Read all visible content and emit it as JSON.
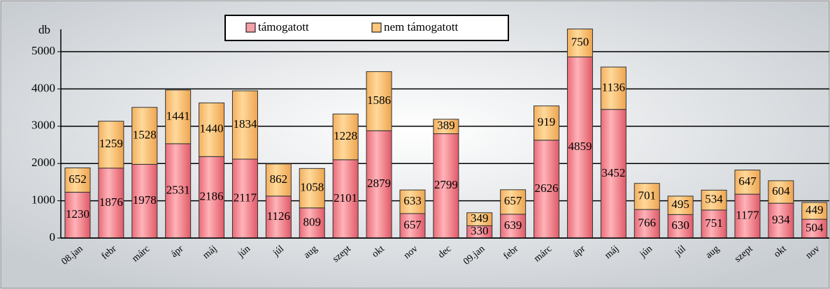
{
  "chart_data": {
    "type": "stacked_bar",
    "y_label": "db",
    "categories": [
      "08.jan",
      "febr",
      "márc",
      "ápr",
      "máj",
      "jún",
      "júl",
      "aug",
      "szept",
      "okt",
      "nov",
      "dec",
      "09.jan",
      "febr",
      "márc",
      "ápr",
      "máj",
      "jún",
      "júl",
      "aug",
      "szept",
      "okt",
      "nov"
    ],
    "series": [
      {
        "name": "támogatott",
        "color": "#f4a0a8",
        "values": [
          1230,
          1876,
          1978,
          2531,
          2186,
          2117,
          1126,
          809,
          2101,
          2879,
          657,
          2799,
          330,
          639,
          2626,
          4859,
          3452,
          766,
          630,
          751,
          1177,
          934,
          504
        ]
      },
      {
        "name": "nem támogatott",
        "color": "#ffc87a",
        "values": [
          652,
          1259,
          1528,
          1441,
          1440,
          1834,
          862,
          1058,
          1228,
          1586,
          633,
          389,
          349,
          657,
          919,
          750,
          1136,
          701,
          495,
          534,
          647,
          604,
          449
        ]
      }
    ],
    "ylim": [
      0,
      5600
    ],
    "yticks": [
      0,
      1000,
      2000,
      3000,
      4000,
      5000
    ],
    "grid": true
  }
}
